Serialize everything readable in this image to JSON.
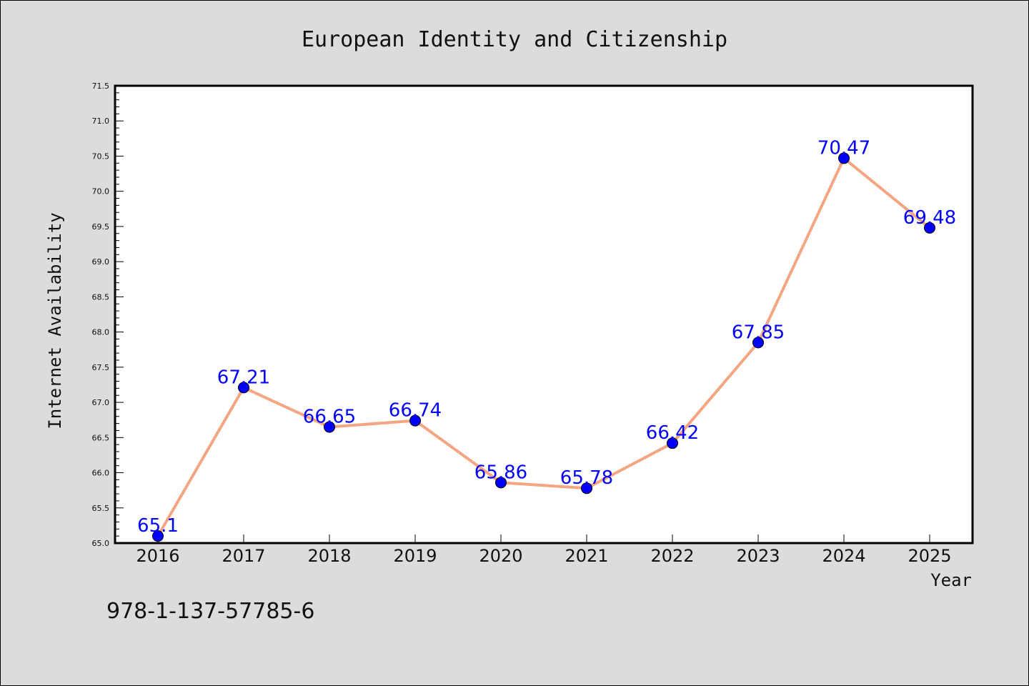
{
  "chart_data": {
    "type": "line",
    "title": "European Identity and Citizenship",
    "xlabel": "Year",
    "ylabel": "Internet Availability",
    "x": [
      "2016",
      "2017",
      "2018",
      "2019",
      "2020",
      "2021",
      "2022",
      "2023",
      "2024",
      "2025"
    ],
    "series": [
      {
        "values": [
          65.1,
          67.21,
          66.65,
          66.74,
          65.86,
          65.78,
          66.42,
          67.85,
          70.47,
          69.48
        ],
        "data_labels": [
          "65.1",
          "67.21",
          "66.65",
          "66.74",
          "65.86",
          "65.78",
          "66.42",
          "67.85",
          "70.47",
          "69.48"
        ],
        "line_color": "#f4a582",
        "marker_color": "#0000ff"
      }
    ],
    "ylim": [
      65.0,
      71.5
    ],
    "yticks": [
      "65.0",
      "65.5",
      "66.0",
      "66.5",
      "67.0",
      "67.5",
      "68.0",
      "68.5",
      "69.0",
      "69.5",
      "70.0",
      "70.5",
      "71.0",
      "71.5"
    ],
    "grid": false,
    "legend": "none",
    "background_color": "#dcdcdc",
    "plot_background_color": "#ffffff",
    "label_color": "#0000ff"
  },
  "annotation": {
    "isbn": "978-1-137-57785-6"
  }
}
